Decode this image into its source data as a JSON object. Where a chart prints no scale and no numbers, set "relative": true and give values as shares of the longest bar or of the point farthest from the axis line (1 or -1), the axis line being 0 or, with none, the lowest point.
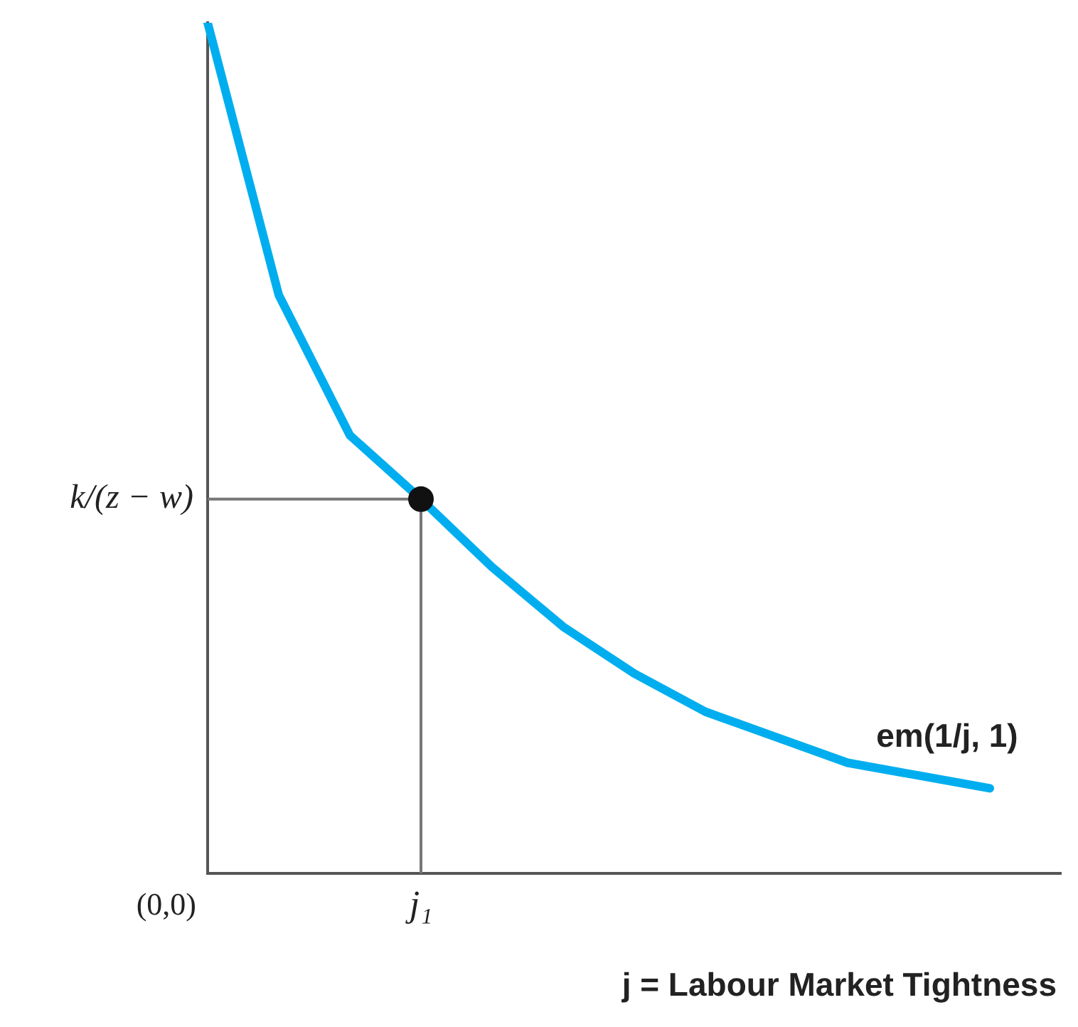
{
  "chart_data": {
    "type": "line",
    "relative": true,
    "xlabel": "j = Labour Market Tightness",
    "grid": false,
    "legend": false,
    "categories": [
      null,
      null,
      null,
      null,
      null,
      null,
      null,
      null,
      null,
      null,
      null,
      null,
      null
    ],
    "series": [
      {
        "color": "#00aeef",
        "values": [
          1,
          0.68,
          0.515,
          0.44,
          0.36,
          0.29,
          0.235,
          0.19,
          0.16,
          0.13,
          0.115,
          0.1,
          null
        ]
      }
    ],
    "ref_lines": [
      {
        "axis": "y",
        "value": 0.44,
        "label": "k/(z − w)",
        "color": "#777777"
      }
    ],
    "annotations": [
      "(0,0)",
      "j₁",
      "em(1/j, 1)"
    ]
  }
}
